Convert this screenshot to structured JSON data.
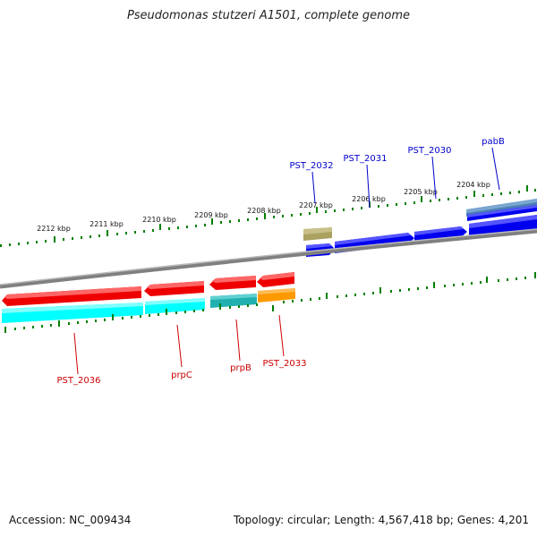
{
  "title": "Pseudomonas stutzeri A1501, complete genome",
  "footer": {
    "accession": "Accession: NC_009434",
    "topology": "Topology: circular;",
    "length": "Length: 4,567,418 bp;",
    "genes": "Genes: 4,201"
  },
  "ruler_labels_top": [
    "2212 kbp",
    "2211 kbp",
    "2210 kbp",
    "2209 kbp",
    "2208 kbp",
    "2207 kbp",
    "2206 kbp",
    "2205 kbp",
    "2204 kbp"
  ],
  "gene_labels_forward": [
    "PST_2032",
    "PST_2031",
    "PST_2030",
    "pabB"
  ],
  "gene_labels_reverse": [
    "PST_2036",
    "prpC",
    "prpB",
    "PST_2033"
  ],
  "colors": {
    "forward_cds": "#0000ee",
    "forward_label": "#0000cc",
    "reverse_cds": "#ee0000",
    "reverse_label": "#cc0000",
    "rna_like": "#aaa060",
    "cyan_feature": "#00ffff",
    "teal_feature": "#20b0b0",
    "orange_feature": "#ff9900",
    "steel_feature": "#4a7fb5",
    "backbone": "#808080",
    "ticks": "#008000"
  }
}
